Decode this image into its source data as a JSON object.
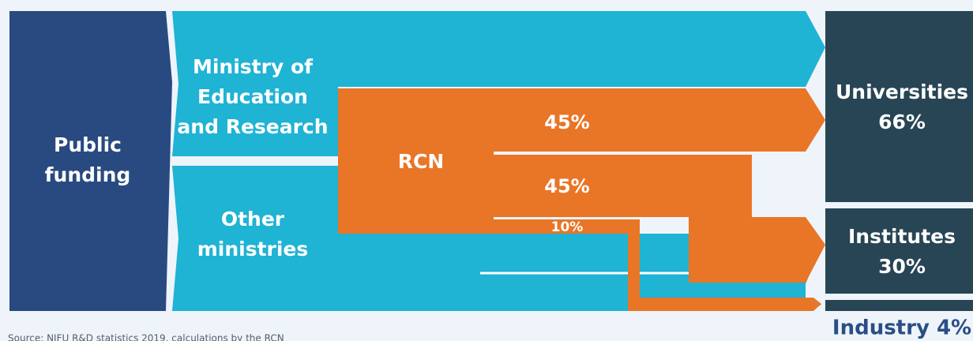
{
  "source": "Source: NIFU R&D statistics 2019, calculations by the RCN",
  "sources": [
    "Public funding",
    "Ministry of Education and Research",
    "Other ministries"
  ],
  "intermediary": "RCN",
  "flows": [
    "45%",
    "45%",
    "10%"
  ],
  "recipients": [
    "Universities 66%",
    "Institutes 30%",
    "Industry 4%"
  ]
}
